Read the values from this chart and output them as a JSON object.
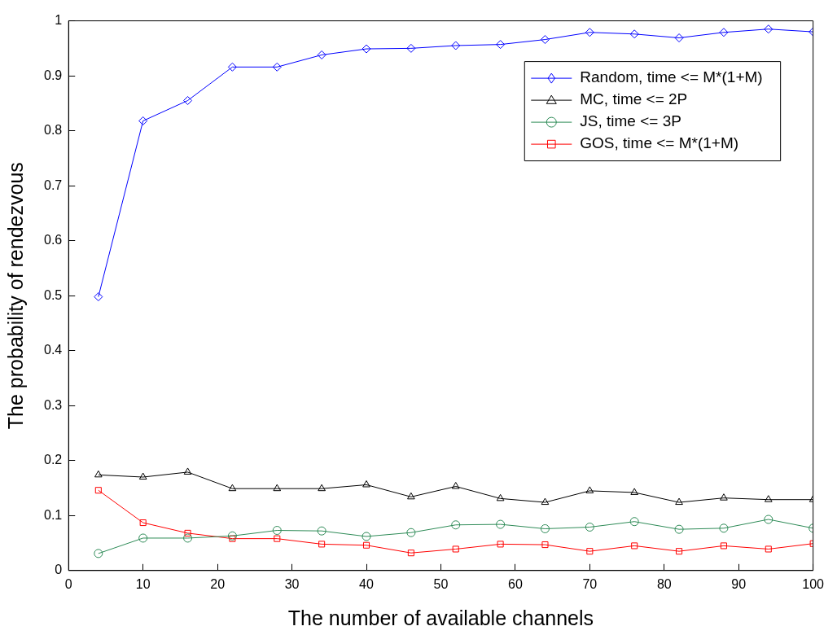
{
  "chart_data": {
    "type": "line",
    "xlabel": "The number of available channels",
    "ylabel": "The probability of rendezvous",
    "x": [
      4,
      10,
      16,
      22,
      28,
      34,
      40,
      46,
      52,
      58,
      64,
      70,
      76,
      82,
      88,
      94,
      100
    ],
    "xlim": [
      0,
      100
    ],
    "xticks": [
      0,
      10,
      20,
      30,
      40,
      50,
      60,
      70,
      80,
      90,
      100
    ],
    "ylim": [
      0,
      1
    ],
    "yticks": [
      0,
      0.1,
      0.2,
      0.3,
      0.4,
      0.5,
      0.6,
      0.7,
      0.8,
      0.9,
      1
    ],
    "legend": "top right",
    "line_style": "solid",
    "series": [
      {
        "name": "Random, time <= M*(1+M)",
        "color": "#0000ff",
        "marker": "diamond",
        "values": [
          0.498,
          0.818,
          0.855,
          0.916,
          0.916,
          0.938,
          0.949,
          0.95,
          0.955,
          0.957,
          0.966,
          0.979,
          0.976,
          0.969,
          0.979,
          0.985,
          0.98
        ]
      },
      {
        "name": "MC, time <= 2P",
        "color": "#000000",
        "marker": "triangle",
        "values": [
          0.174,
          0.17,
          0.179,
          0.149,
          0.149,
          0.149,
          0.156,
          0.134,
          0.153,
          0.131,
          0.124,
          0.145,
          0.142,
          0.124,
          0.132,
          0.129,
          0.129
        ]
      },
      {
        "name": "JS, time <= 3P",
        "color": "#2e8b57",
        "marker": "circle",
        "values": [
          0.031,
          0.059,
          0.059,
          0.063,
          0.073,
          0.072,
          0.062,
          0.069,
          0.083,
          0.084,
          0.076,
          0.079,
          0.089,
          0.075,
          0.077,
          0.093,
          0.077
        ]
      },
      {
        "name": "GOS, time <= M*(1+M)",
        "color": "#ff0000",
        "marker": "square",
        "values": [
          0.146,
          0.087,
          0.068,
          0.058,
          0.058,
          0.048,
          0.046,
          0.032,
          0.039,
          0.048,
          0.047,
          0.035,
          0.045,
          0.035,
          0.045,
          0.039,
          0.049
        ]
      }
    ]
  }
}
